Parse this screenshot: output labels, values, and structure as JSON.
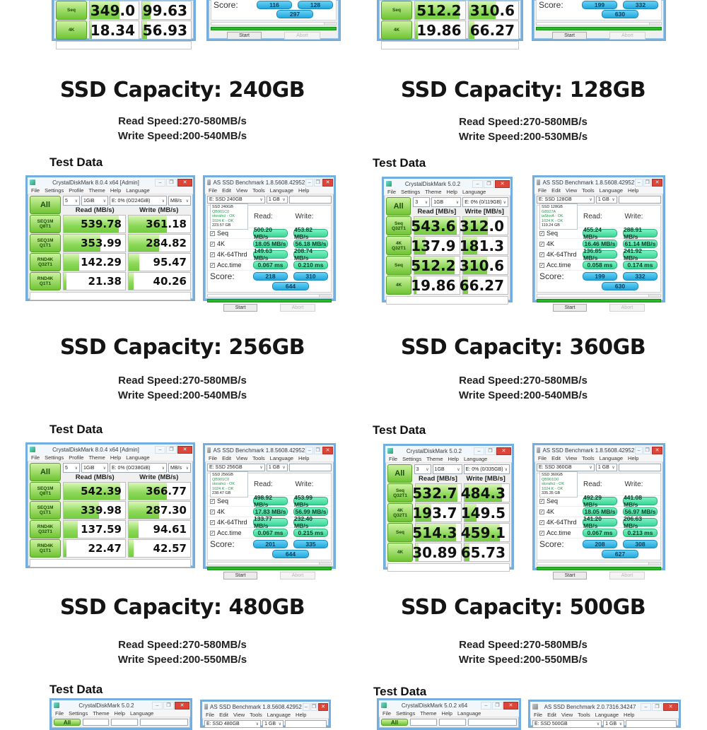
{
  "colors": {
    "window_border": "#74aede",
    "cdm_green": "#6ec433",
    "as_mint": "#3bd695",
    "as_blue": "#23a7dd",
    "progress_green": "#28b828",
    "close_red": "#dd4538"
  },
  "icons": {
    "minimize": "–",
    "maximize": "❐",
    "close": "✕",
    "caret": "∨",
    "check": "✓"
  },
  "shared": {
    "all": "All",
    "start": "Start",
    "abort": "Abort",
    "score": "Score:",
    "read_as": "Read:",
    "write_as": "Write:",
    "cdm8_read": "Read (MB/s)",
    "cdm8_write": "Write (MB/s)",
    "cdm5_read": "Read [MB/s]",
    "cdm5_write": "Write [MB/s]",
    "cdm8_menu": [
      "File",
      "Settings",
      "Profile",
      "Theme",
      "Help",
      "Language"
    ],
    "cdm5_menu": [
      "File",
      "Settings",
      "Theme",
      "Help",
      "Language"
    ],
    "as_menu": [
      "File",
      "Edit",
      "View",
      "Tools",
      "Language",
      "Help"
    ]
  },
  "top": {
    "left_cdm": {
      "rows": [
        {
          "label": "Seq",
          "read": "349.0",
          "write": "99.63",
          "rf": 61,
          "wf": 18
        },
        {
          "label": "4K",
          "read": "18.34",
          "write": "56.93",
          "rf": 5,
          "wf": 10
        }
      ]
    },
    "left_as": {
      "score_read": "116",
      "score_write": "128",
      "score_total": "297"
    },
    "right_cdm": {
      "rows": [
        {
          "label": "Seq",
          "read": "512.2",
          "write": "310.6",
          "rf": 90,
          "wf": 54
        },
        {
          "label": "4K",
          "read": "19.86",
          "write": "66.27",
          "rf": 5,
          "wf": 12
        }
      ]
    },
    "right_as": {
      "score_read": "199",
      "score_write": "332",
      "score_total": "630"
    }
  },
  "sections": [
    {
      "title": "SSD Capacity: 240GB",
      "read_speed": "Read Speed:270-580MB/s",
      "write_speed": "Write Speed:200-540MB/s",
      "test_data": "Test Data",
      "cdm": {
        "title": "CrystalDiskMark 8.0.4 x64 [Admin]",
        "count": "5",
        "size": "1GiB",
        "target": "E: 0% (0/224GiB)",
        "unit": "MB/s",
        "rows": [
          {
            "l1": "SEQ1M",
            "l2": "Q8T1",
            "read": "539.78",
            "write": "361.18",
            "rf": 90,
            "wf": 62
          },
          {
            "l1": "SEQ1M",
            "l2": "Q1T1",
            "read": "353.99",
            "write": "284.82",
            "rf": 60,
            "wf": 49
          },
          {
            "l1": "RND4K",
            "l2": "Q32T1",
            "read": "142.29",
            "write": "95.47",
            "rf": 25,
            "wf": 17
          },
          {
            "l1": "RND4K",
            "l2": "Q1T1",
            "read": "21.38",
            "write": "40.26",
            "rf": 5,
            "wf": 8
          }
        ]
      },
      "as": {
        "title": "AS SSD Benchmark 1.8.5608.42952",
        "drive": "E: SSD 240GB",
        "size": "1 GB",
        "info": [
          "SSD 240GB",
          "QB901C0",
          "storahci - OK",
          "1024 K - OK",
          "223.57 GB"
        ],
        "rows": [
          {
            "label": "Seq",
            "read": "500.20 MB/s",
            "write": "453.82 MB/s"
          },
          {
            "label": "4K",
            "read": "18.05 MB/s",
            "write": "56.18 MB/s"
          },
          {
            "label": "4K-64Thrd",
            "read": "149.63 MB/s",
            "write": "208.74 MB/s"
          },
          {
            "label": "Acc.time",
            "read": "0.067 ms",
            "write": "0.210 ms"
          }
        ],
        "score_read": "218",
        "score_write": "310",
        "score_total": "644"
      }
    },
    {
      "title": "SSD Capacity: 128GB",
      "read_speed": "Read Speed:270-580MB/s",
      "write_speed": "Write Speed:200-530MB/s",
      "test_data": "Test Data",
      "cdm": {
        "title": "CrystalDiskMark 5.0.2",
        "count": "3",
        "size": "1GB",
        "target": "E: 0% (0/119GB)",
        "rows": [
          {
            "l1": "Seq",
            "l2": "Q32T1",
            "read": "543.6",
            "write": "312.0",
            "rf": 95,
            "wf": 56
          },
          {
            "l1": "4K",
            "l2": "Q32T1",
            "read": "137.9",
            "write": "181.3",
            "rf": 25,
            "wf": 33
          },
          {
            "l1": "Seq",
            "l2": "",
            "read": "512.2",
            "write": "310.6",
            "rf": 90,
            "wf": 55
          },
          {
            "l1": "4K",
            "l2": "",
            "read": "19.86",
            "write": "66.27",
            "rf": 5,
            "wf": 12
          }
        ]
      },
      "as": {
        "title": "AS SSD Benchmark 1.8.5608.42952",
        "drive": "E: SSD 128GB",
        "size": "1 GB",
        "info": [
          "SSD 128GB",
          "G8927A",
          "iaStorA - OK",
          "1024 K - OK",
          "119.24 GB"
        ],
        "rows": [
          {
            "label": "Seq",
            "read": "455.24 MB/s",
            "write": "288.91 MB/s"
          },
          {
            "label": "4K",
            "read": "16.46 MB/s",
            "write": "61.14 MB/s"
          },
          {
            "label": "4K-64Thrd",
            "read": "136.85 MB/s",
            "write": "241.92 MB/s"
          },
          {
            "label": "Acc.time",
            "read": "0.058 ms",
            "write": "0.174 ms"
          }
        ],
        "score_read": "199",
        "score_write": "332",
        "score_total": "630"
      }
    },
    {
      "title": "SSD Capacity: 256GB",
      "read_speed": "Read Speed:270-580MB/s",
      "write_speed": "Write Speed:200-540MB/s",
      "test_data": "Test Data",
      "cdm": {
        "title": "CrystalDiskMark 8.0.4 x64 [Admin]",
        "count": "5",
        "size": "1GiB",
        "target": "E: 0% (0/238GiB)",
        "unit": "MB/s",
        "rows": [
          {
            "l1": "SEQ1M",
            "l2": "Q8T1",
            "read": "542.39",
            "write": "366.77",
            "rf": 92,
            "wf": 62
          },
          {
            "l1": "SEQ1M",
            "l2": "Q1T1",
            "read": "339.98",
            "write": "287.30",
            "rf": 58,
            "wf": 49
          },
          {
            "l1": "RND4K",
            "l2": "Q32T1",
            "read": "137.59",
            "write": "94.61",
            "rf": 23,
            "wf": 16
          },
          {
            "l1": "RND4K",
            "l2": "Q1T1",
            "read": "22.47",
            "write": "42.57",
            "rf": 5,
            "wf": 8
          }
        ]
      },
      "as": {
        "title": "AS SSD Benchmark 1.8.5608.42952",
        "drive": "E: SSD 256GB",
        "size": "1 GB",
        "info": [
          "SSD 256GB",
          "QB901C0",
          "storahci - OK",
          "1024 K - OK",
          "238.47 GB"
        ],
        "rows": [
          {
            "label": "Seq",
            "read": "498.92 MB/s",
            "write": "453.99 MB/s"
          },
          {
            "label": "4K",
            "read": "17.83 MB/s",
            "write": "56.99 MB/s"
          },
          {
            "label": "4K-64Thrd",
            "read": "133.77 MB/s",
            "write": "232.40 MB/s"
          },
          {
            "label": "Acc.time",
            "read": "0.067 ms",
            "write": "0.215 ms"
          }
        ],
        "score_read": "201",
        "score_write": "335",
        "score_total": "644"
      }
    },
    {
      "title": "SSD Capacity: 360GB",
      "read_speed": "Read Speed:270-580MB/s",
      "write_speed": "Write Speed:200-540MB/s",
      "test_data": "Test Data",
      "cdm": {
        "title": "CrystalDiskMark 5.0.2",
        "count": "3",
        "size": "1GB",
        "target": "E: 0% (0/335GB)",
        "rows": [
          {
            "l1": "Seq",
            "l2": "Q32T1",
            "read": "532.7",
            "write": "484.3",
            "rf": 93,
            "wf": 85
          },
          {
            "l1": "4K",
            "l2": "Q32T1",
            "read": "193.7",
            "write": "149.5",
            "rf": 34,
            "wf": 27
          },
          {
            "l1": "Seq",
            "l2": "",
            "read": "514.3",
            "write": "459.1",
            "rf": 90,
            "wf": 80
          },
          {
            "l1": "4K",
            "l2": "",
            "read": "30.89",
            "write": "65.73",
            "rf": 6,
            "wf": 12
          }
        ]
      },
      "as": {
        "title": "AS SSD Benchmark 1.8.5608.42952",
        "drive": "E: SSD 360GB",
        "size": "1 GB",
        "info": [
          "SSD 360GB",
          "QB901D0",
          "storahci - OK",
          "1024 K - OK",
          "335.35 GB"
        ],
        "rows": [
          {
            "label": "Seq",
            "read": "492.29 MB/s",
            "write": "441.08 MB/s"
          },
          {
            "label": "4K",
            "read": "18.05 MB/s",
            "write": "56.97 MB/s"
          },
          {
            "label": "4K-64Thrd",
            "read": "141.20 MB/s",
            "write": "206.63 MB/s"
          },
          {
            "label": "Acc.time",
            "read": "0.067 ms",
            "write": "0.213 ms"
          }
        ],
        "score_read": "208",
        "score_write": "308",
        "score_total": "627"
      }
    },
    {
      "title": "SSD Capacity: 480GB",
      "read_speed": "Read Speed:270-580MB/s",
      "write_speed": "Write Speed:200-550MB/s",
      "test_data": "Test Data",
      "cdm": {
        "title": "CrystalDiskMark 5.0.2"
      },
      "as": {
        "title": "AS SSD Benchmark 1.8.5608.42952",
        "drive": "E: SSD 480GB",
        "size": "1 GB"
      }
    },
    {
      "title": "SSD Capacity: 500GB",
      "read_speed": "Read Speed:270-580MB/s",
      "write_speed": "Write Speed:200-550MB/s",
      "test_data": "Test Data",
      "cdm": {
        "title": "CrystalDiskMark 5.0.2 x64"
      },
      "as": {
        "title": "AS SSD Benchmark 2.0.7316.34247",
        "drive": "E: SSD 500GB",
        "size": "1 GB"
      }
    }
  ]
}
